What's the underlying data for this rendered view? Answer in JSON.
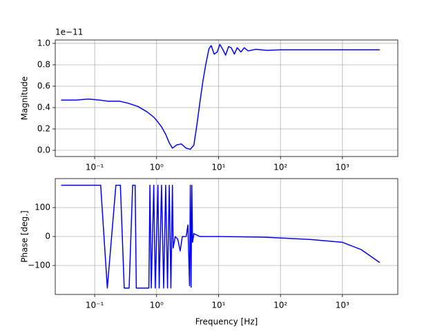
{
  "chart_data": [
    {
      "type": "line",
      "xscale": "log",
      "grid": true,
      "ylabel": "Magnitude",
      "offset_text": "1e−11",
      "xlim": [
        0.0231,
        7830
      ],
      "ylim": [
        -0.058,
        1.032
      ],
      "xticks": [
        {
          "value": 0.1,
          "label": "10⁻¹"
        },
        {
          "value": 1,
          "label": "10⁰"
        },
        {
          "value": 10,
          "label": "10¹"
        },
        {
          "value": 100,
          "label": "10²"
        },
        {
          "value": 1000,
          "label": "10³"
        }
      ],
      "yticks": [
        {
          "value": 0,
          "label": "0.0"
        },
        {
          "value": 0.2,
          "label": "0.2"
        },
        {
          "value": 0.4,
          "label": "0.4"
        },
        {
          "value": 0.6,
          "label": "0.6"
        },
        {
          "value": 0.8,
          "label": "0.8"
        },
        {
          "value": 1,
          "label": "1.0"
        }
      ],
      "x": [
        0.0287,
        0.05,
        0.08,
        0.12,
        0.16,
        0.25,
        0.35,
        0.5,
        0.7,
        0.9,
        1.0,
        1.2,
        1.4,
        1.6,
        1.8,
        2.1,
        2.5,
        3.0,
        3.5,
        4.0,
        4.5,
        5,
        5.6,
        6.2,
        7.0,
        7.6,
        8.5,
        9.5,
        10.5,
        11.8,
        13,
        14.5,
        16,
        18,
        20,
        23,
        26,
        30,
        40,
        60,
        100,
        1000,
        4000
      ],
      "series": [
        {
          "color": "#0000ff",
          "values": [
            0.47,
            0.47,
            0.48,
            0.47,
            0.46,
            0.46,
            0.44,
            0.41,
            0.36,
            0.31,
            0.28,
            0.22,
            0.15,
            0.07,
            0.02,
            0.05,
            0.06,
            0.02,
            0.01,
            0.05,
            0.25,
            0.45,
            0.65,
            0.8,
            0.95,
            0.98,
            0.9,
            0.92,
            0.99,
            0.94,
            0.89,
            0.97,
            0.96,
            0.9,
            0.96,
            0.92,
            0.96,
            0.93,
            0.945,
            0.935,
            0.94,
            0.94,
            0.94
          ]
        }
      ]
    },
    {
      "type": "line",
      "xscale": "log",
      "grid": true,
      "ylabel": "Phase [deg.]",
      "xlabel": "Frequency [Hz]",
      "xlim": [
        0.0231,
        7830
      ],
      "ylim": [
        -200,
        200
      ],
      "xticks": [
        {
          "value": 0.1,
          "label": "10⁻¹"
        },
        {
          "value": 1,
          "label": "10⁰"
        },
        {
          "value": 10,
          "label": "10¹"
        },
        {
          "value": 100,
          "label": "10²"
        },
        {
          "value": 1000,
          "label": "10³"
        }
      ],
      "yticks": [
        {
          "value": -100,
          "label": "−100"
        },
        0,
        100
      ],
      "x": [
        0.0287,
        0.125,
        0.16,
        0.22,
        0.26,
        0.3,
        0.36,
        0.41,
        0.45,
        0.47,
        0.75,
        0.78,
        0.82,
        0.9,
        0.95,
        1.05,
        1.1,
        1.2,
        1.3,
        1.4,
        1.5,
        1.6,
        1.7,
        1.8,
        1.85,
        2.0,
        2.2,
        2.4,
        2.6,
        3.0,
        3.2,
        3.4,
        3.5,
        3.6,
        3.7,
        3.8,
        4.0,
        5.0,
        10,
        50,
        100,
        300,
        1000,
        2000,
        4000
      ],
      "series": [
        {
          "color": "#0000ff",
          "values": [
            177,
            177,
            -178,
            177,
            177,
            -178,
            -178,
            177,
            177,
            -178,
            -178,
            177,
            -178,
            177,
            -178,
            177,
            -178,
            177,
            -178,
            177,
            -178,
            177,
            -178,
            177,
            -40,
            0,
            -10,
            -50,
            0,
            0,
            40,
            -170,
            177,
            -175,
            177,
            -20,
            10,
            0,
            0,
            -2,
            -5,
            -10,
            -20,
            -45,
            -90
          ]
        }
      ]
    }
  ]
}
